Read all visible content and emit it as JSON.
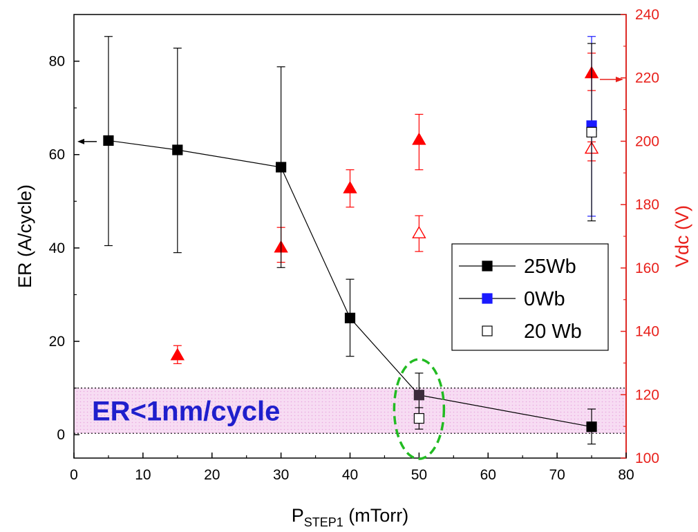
{
  "chart_data": {
    "type": "scatter",
    "x": {
      "ticks": [
        0,
        10,
        20,
        30,
        40,
        50,
        60,
        70,
        80
      ],
      "range": [
        0,
        80
      ],
      "label_main": "P",
      "label_sub": "STEP1",
      "label_unit": " (mTorr)"
    },
    "y_left": {
      "label": "ER (A/cycle)",
      "ticks": [
        0,
        20,
        40,
        60,
        80
      ],
      "range": [
        -5,
        90
      ]
    },
    "y_right": {
      "label": "Vdc (V)",
      "ticks": [
        100,
        120,
        140,
        160,
        180,
        200,
        220,
        240
      ],
      "range": [
        100,
        240
      ]
    },
    "er_series": [
      {
        "name": "25Wb",
        "marker": "filled-square",
        "color": "#000000",
        "errbar_color": "#000000",
        "connect": true,
        "points": [
          {
            "x": 5,
            "y": 63,
            "lo": 40.5,
            "hi": 85.3
          },
          {
            "x": 15,
            "y": 61,
            "lo": 39,
            "hi": 82.8
          },
          {
            "x": 30,
            "y": 57.3,
            "lo": 35.8,
            "hi": 78.8
          },
          {
            "x": 40,
            "y": 25,
            "lo": 16.8,
            "hi": 33.3
          },
          {
            "x": 50,
            "y": 8.5,
            "lo": 3.8,
            "hi": 13.2
          },
          {
            "x": 75,
            "y": 1.7,
            "lo": -2,
            "hi": 5.5
          }
        ]
      },
      {
        "name": "0Wb",
        "marker": "filled-square",
        "color": "#1a1aff",
        "errbar_color": "#1a1aff",
        "connect": false,
        "points": [
          {
            "x": 75,
            "y": 66.2,
            "lo": 46.8,
            "hi": 85.3
          }
        ]
      },
      {
        "name": "20 Wb",
        "marker": "open-square",
        "color": "#000000",
        "errbar_color": "#000000",
        "connect": false,
        "points": [
          {
            "x": 50,
            "y": 3.5,
            "lo": 1.2,
            "hi": 5.8
          },
          {
            "x": 75,
            "y": 64.8,
            "lo": 45.8,
            "hi": 83.8
          }
        ]
      }
    ],
    "vdc_series": [
      {
        "marker": "filled-triangle",
        "color": "#ff0000",
        "points": [
          {
            "x": 15,
            "y": 132.5,
            "lo": 129.8,
            "hi": 135.5
          },
          {
            "x": 30,
            "y": 166.5,
            "lo": 161.8,
            "hi": 172.8
          },
          {
            "x": 40,
            "y": 185.2,
            "lo": 179.2,
            "hi": 191
          },
          {
            "x": 50,
            "y": 200.5,
            "lo": 191,
            "hi": 208.5
          },
          {
            "x": 75,
            "y": 221.5,
            "lo": 216,
            "hi": 227.8
          }
        ]
      },
      {
        "marker": "open-triangle",
        "color": "#ff0000",
        "points": [
          {
            "x": 50,
            "y": 171,
            "lo": 165.2,
            "hi": 176.5
          },
          {
            "x": 75,
            "y": 197.7,
            "lo": 193.8,
            "hi": 199.8
          }
        ]
      }
    ],
    "band": {
      "y_low": 0.3,
      "y_high": 10,
      "label": "ER<1nm/cycle",
      "color": "#f7dcf3"
    },
    "highlight_ellipse": {
      "cx": 50,
      "cy": 5.5,
      "color": "#22bb22"
    },
    "left_arrow": {
      "y": 62.8,
      "points_to": "left axis"
    },
    "right_arrow": {
      "vdc": 219.5,
      "points_to": "right axis"
    },
    "legend": {
      "placement": "inside right",
      "entries": [
        "25Wb",
        "0Wb",
        "20 Wb"
      ]
    },
    "colors": {
      "left_axis": "#000000",
      "right_axis": "#e8201b"
    }
  }
}
